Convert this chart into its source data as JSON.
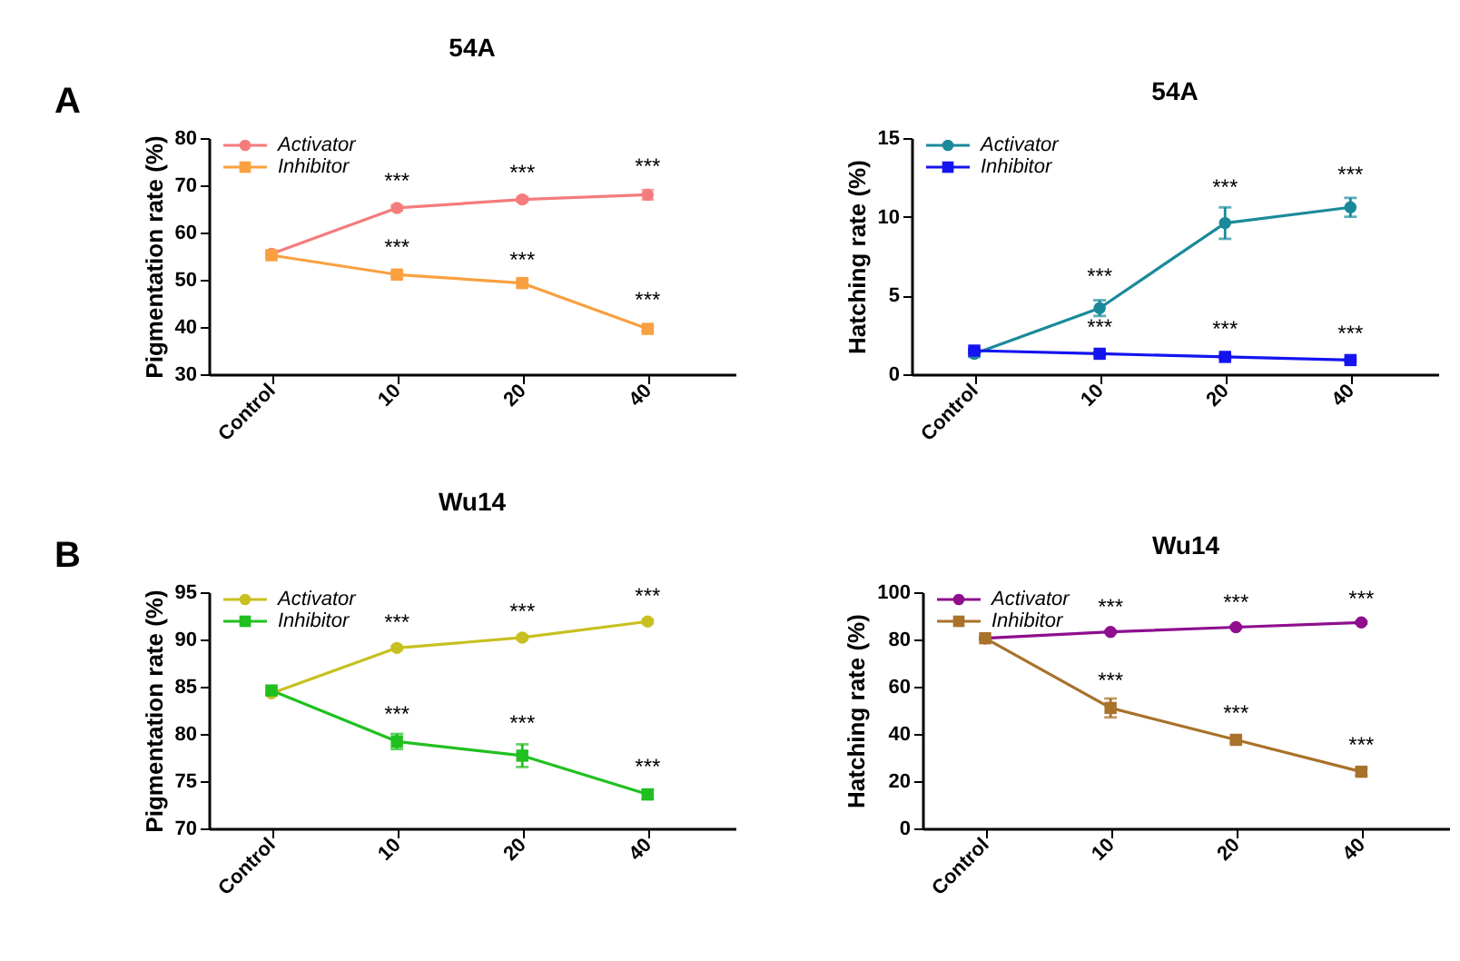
{
  "chart_data": [
    {
      "type": "line",
      "title": "54A",
      "ylabel": "Pigmentation rate (%)",
      "categories": [
        "Control",
        "10",
        "20",
        "40"
      ],
      "ylim": [
        30,
        80
      ],
      "yticks": [
        30,
        40,
        50,
        60,
        70,
        80
      ],
      "legend": "top left",
      "grid": false,
      "series": [
        {
          "name": "Activator",
          "color": "#f47c7c",
          "marker": "circle",
          "values": [
            55.5,
            65.2,
            67.0,
            68.0
          ],
          "errors": [
            0.5,
            0.5,
            0.5,
            1.0
          ]
        },
        {
          "name": "Inhibitor",
          "color": "#f9a040",
          "marker": "square",
          "values": [
            55.2,
            51.1,
            49.3,
            39.6
          ],
          "errors": [
            0.5,
            0.5,
            0.7,
            0.5
          ]
        }
      ],
      "annotations": [
        "A",
        {
          "text": "***",
          "x": "10",
          "y": 68.3
        },
        {
          "text": "***",
          "x": "20",
          "y": 70.0
        },
        {
          "text": "***",
          "x": "40",
          "y": 71.3
        },
        {
          "text": "***",
          "x": "10",
          "y": 54.3
        },
        {
          "text": "***",
          "x": "20",
          "y": 51.5
        },
        {
          "text": "***",
          "x": "40",
          "y": 43.0
        }
      ]
    },
    {
      "type": "line",
      "title": "54A",
      "ylabel": "Hatching rate (%)",
      "categories": [
        "Control",
        "10",
        "20",
        "40"
      ],
      "ylim": [
        0,
        15
      ],
      "yticks": [
        0,
        5,
        10,
        15
      ],
      "legend": "top left",
      "grid": false,
      "series": [
        {
          "name": "Activator",
          "color": "#1a8a9a",
          "marker": "circle",
          "values": [
            1.3,
            4.2,
            9.6,
            10.6
          ],
          "errors": [
            0.2,
            0.5,
            1.0,
            0.6
          ]
        },
        {
          "name": "Inhibitor",
          "color": "#1414f0",
          "marker": "square",
          "values": [
            1.5,
            1.3,
            1.1,
            0.9
          ],
          "errors": [
            0.1,
            0.1,
            0.1,
            0.1
          ]
        }
      ],
      "annotations": [
        {
          "text": "***",
          "x": "10",
          "y": 5.4
        },
        {
          "text": "***",
          "x": "20",
          "y": 11.1
        },
        {
          "text": "***",
          "x": "40",
          "y": 11.9
        },
        {
          "text": "***",
          "x": "10",
          "y": 2.2
        },
        {
          "text": "***",
          "x": "20",
          "y": 2.1
        },
        {
          "text": "***",
          "x": "40",
          "y": 1.8
        }
      ]
    },
    {
      "type": "line",
      "title": "Wu14",
      "ylabel": "Pigmentation rate (%)",
      "categories": [
        "Control",
        "10",
        "20",
        "40"
      ],
      "ylim": [
        70,
        95
      ],
      "yticks": [
        70,
        75,
        80,
        85,
        90,
        95
      ],
      "legend": "top left",
      "grid": false,
      "series": [
        {
          "name": "Activator",
          "color": "#c8c020",
          "marker": "circle",
          "values": [
            84.3,
            89.1,
            90.2,
            91.9
          ],
          "errors": [
            0.2,
            0.2,
            0.2,
            0.2
          ]
        },
        {
          "name": "Inhibitor",
          "color": "#20c020",
          "marker": "square",
          "values": [
            84.6,
            79.2,
            77.7,
            73.6
          ],
          "errors": [
            0.3,
            0.8,
            1.2,
            0.5
          ]
        }
      ],
      "annotations": [
        "B",
        {
          "text": "***",
          "x": "10",
          "y": 90.5
        },
        {
          "text": "***",
          "x": "20",
          "y": 91.6
        },
        {
          "text": "***",
          "x": "40",
          "y": 93.3
        },
        {
          "text": "***",
          "x": "10",
          "y": 80.8
        },
        {
          "text": "***",
          "x": "20",
          "y": 79.8
        },
        {
          "text": "***",
          "x": "40",
          "y": 75.2
        }
      ]
    },
    {
      "type": "line",
      "title": "Wu14",
      "ylabel": "Hatching rate (%)",
      "categories": [
        "Control",
        "10",
        "20",
        "40"
      ],
      "ylim": [
        0,
        100
      ],
      "yticks": [
        0,
        20,
        40,
        60,
        80,
        100
      ],
      "legend": "top left",
      "grid": false,
      "series": [
        {
          "name": "Activator",
          "color": "#8e0e8e",
          "marker": "circle",
          "values": [
            80.5,
            83.2,
            85.2,
            87.2
          ],
          "errors": [
            0.5,
            0.5,
            0.5,
            0.5
          ]
        },
        {
          "name": "Inhibitor",
          "color": "#a8722a",
          "marker": "square",
          "values": [
            80.5,
            51.0,
            37.5,
            24.0
          ],
          "errors": [
            0.5,
            4.0,
            1.0,
            1.5
          ]
        }
      ],
      "annotations": [
        {
          "text": "***",
          "x": "10",
          "y": 88.5
        },
        {
          "text": "***",
          "x": "20",
          "y": 90.5
        },
        {
          "text": "***",
          "x": "40",
          "y": 91.8
        },
        {
          "text": "***",
          "x": "10",
          "y": 57.5
        },
        {
          "text": "***",
          "x": "20",
          "y": 43.5
        },
        {
          "text": "***",
          "x": "40",
          "y": 30.0
        }
      ]
    }
  ]
}
